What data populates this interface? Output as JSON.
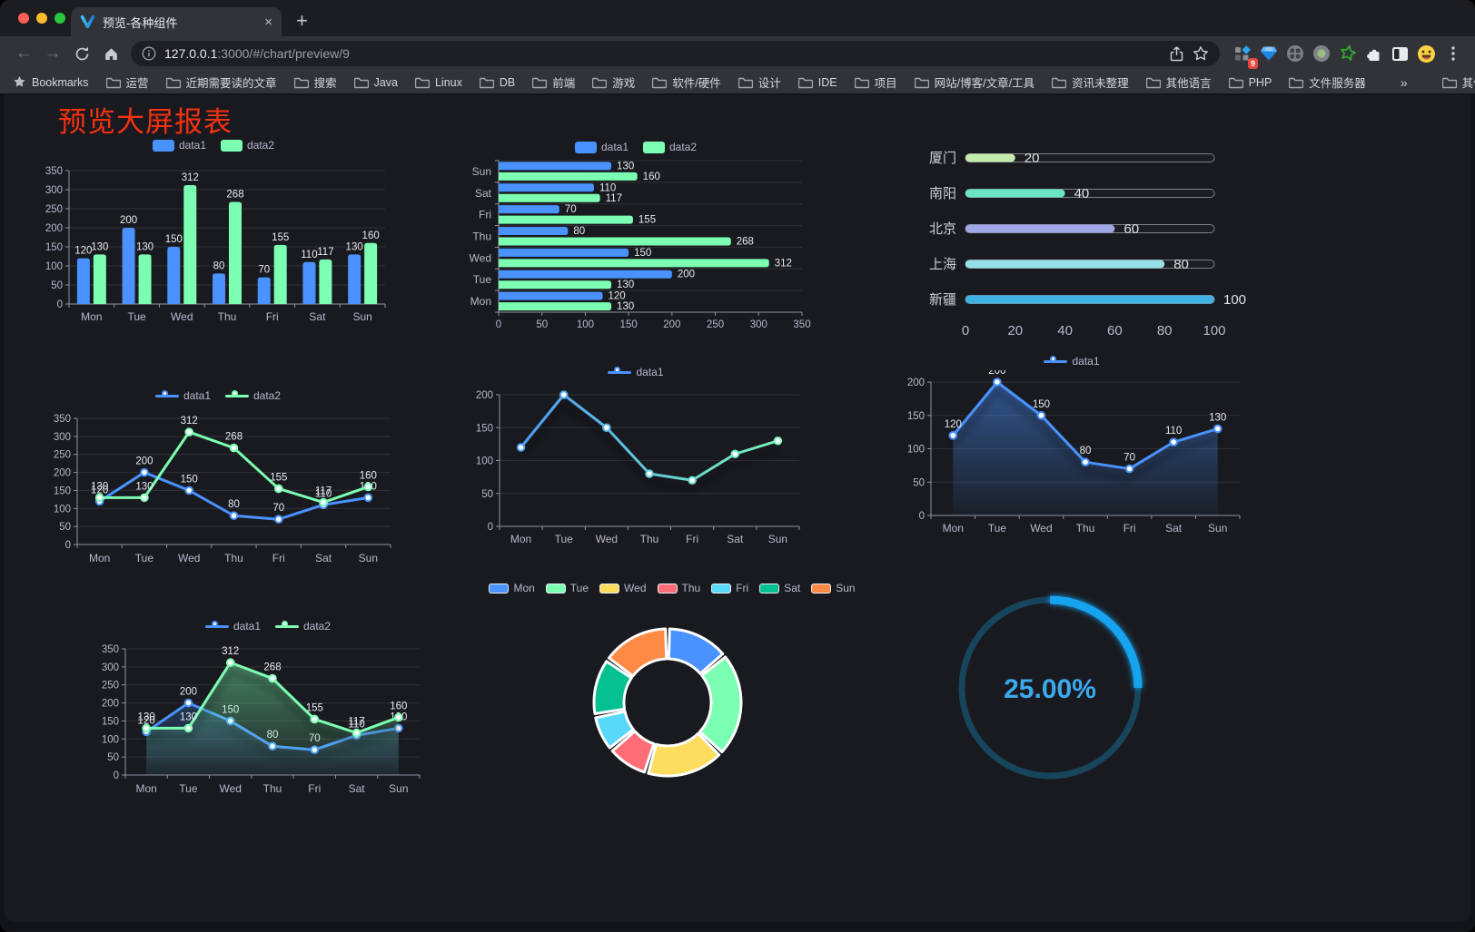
{
  "browser": {
    "tab_title": "预览-各种组件",
    "url_host": "127.0.0.1",
    "url_path": ":3000/#/chart/preview/9",
    "bookmarks_label": "Bookmarks",
    "bookmark_folders": [
      "运营",
      "近期需要读的文章",
      "搜索",
      "Java",
      "Linux",
      "DB",
      "前端",
      "游戏",
      "软件/硬件",
      "设计",
      "IDE",
      "项目",
      "网站/博客/文章/工具",
      "资讯未整理",
      "其他语言",
      "PHP",
      "文件服务器"
    ],
    "overflow": "»",
    "other_bookmarks": "其他书签",
    "extension_badge": "9"
  },
  "icons": {
    "close": "×",
    "new_tab": "+",
    "back": "←",
    "forward": "→"
  },
  "page": {
    "title": "预览大屏报表",
    "title_color": "#f5310f"
  },
  "colors": {
    "data1": "#4992ff",
    "data2": "#7cffb2",
    "axis_label": "#b9b8ce",
    "value_label": "#e9eaee"
  },
  "chart_data": [
    {
      "id": "bar-vertical",
      "type": "bar",
      "categories": [
        "Mon",
        "Tue",
        "Wed",
        "Thu",
        "Fri",
        "Sat",
        "Sun"
      ],
      "series": [
        {
          "name": "data1",
          "color": "#4992ff",
          "values": [
            120,
            200,
            150,
            80,
            70,
            110,
            130
          ]
        },
        {
          "name": "data2",
          "color": "#7cffb2",
          "values": [
            130,
            130,
            312,
            268,
            155,
            117,
            160
          ]
        }
      ],
      "ylim": [
        0,
        350
      ],
      "yticks": [
        0,
        50,
        100,
        150,
        200,
        250,
        300,
        350
      ],
      "value_labels": true
    },
    {
      "id": "bar-horizontal",
      "type": "hbar",
      "categories": [
        "Mon",
        "Tue",
        "Wed",
        "Thu",
        "Fri",
        "Sat",
        "Sun"
      ],
      "display_order_top_to_bottom": [
        "Sun",
        "Sat",
        "Fri",
        "Thu",
        "Wed",
        "Tue",
        "Mon"
      ],
      "series": [
        {
          "name": "data1",
          "color": "#4992ff",
          "values": [
            120,
            200,
            150,
            80,
            70,
            110,
            130
          ]
        },
        {
          "name": "data2",
          "color": "#7cffb2",
          "values": [
            130,
            130,
            312,
            268,
            155,
            117,
            160
          ]
        }
      ],
      "xlim": [
        0,
        350
      ],
      "xticks": [
        0,
        50,
        100,
        150,
        200,
        250,
        300,
        350
      ],
      "value_labels": true
    },
    {
      "id": "capsule-progress",
      "type": "capsule-bar",
      "rows": [
        {
          "label": "厦门",
          "value": 20,
          "color": "#c4ebad"
        },
        {
          "label": "南阳",
          "value": 40,
          "color": "#6be6c1"
        },
        {
          "label": "北京",
          "value": 60,
          "color": "#a0a7e6"
        },
        {
          "label": "上海",
          "value": 80,
          "color": "#96dee8"
        },
        {
          "label": "新疆",
          "value": 100,
          "color": "#3fb1e3"
        }
      ],
      "xlim": [
        0,
        100
      ],
      "xticks": [
        0,
        20,
        40,
        60,
        80,
        100
      ]
    },
    {
      "id": "line-two-series",
      "type": "line",
      "categories": [
        "Mon",
        "Tue",
        "Wed",
        "Thu",
        "Fri",
        "Sat",
        "Sun"
      ],
      "series": [
        {
          "name": "data1",
          "color": "#4992ff",
          "values": [
            120,
            200,
            150,
            80,
            70,
            110,
            130
          ]
        },
        {
          "name": "data2",
          "color": "#7cffb2",
          "values": [
            130,
            130,
            312,
            268,
            155,
            117,
            160
          ]
        }
      ],
      "ylim": [
        0,
        350
      ],
      "yticks": [
        0,
        50,
        100,
        150,
        200,
        250,
        300,
        350
      ],
      "value_labels": true
    },
    {
      "id": "line-gradient",
      "type": "line",
      "categories": [
        "Mon",
        "Tue",
        "Wed",
        "Thu",
        "Fri",
        "Sat",
        "Sun"
      ],
      "series": [
        {
          "name": "data1",
          "color": "#4992ff",
          "gradient": [
            "#4992ff",
            "#7cffb2"
          ],
          "values": [
            120,
            200,
            150,
            80,
            70,
            110,
            130
          ]
        }
      ],
      "ylim": [
        0,
        200
      ],
      "yticks": [
        0,
        50,
        100,
        150,
        200
      ],
      "value_labels": false,
      "shadow": true
    },
    {
      "id": "line-area",
      "type": "line",
      "categories": [
        "Mon",
        "Tue",
        "Wed",
        "Thu",
        "Fri",
        "Sat",
        "Sun"
      ],
      "series": [
        {
          "name": "data1",
          "color": "#4992ff",
          "area": true,
          "values": [
            120,
            200,
            150,
            80,
            70,
            110,
            130
          ]
        }
      ],
      "ylim": [
        0,
        200
      ],
      "yticks": [
        0,
        50,
        100,
        150,
        200
      ],
      "value_labels": true,
      "shadow": true
    },
    {
      "id": "area-two-series",
      "type": "line",
      "categories": [
        "Mon",
        "Tue",
        "Wed",
        "Thu",
        "Fri",
        "Sat",
        "Sun"
      ],
      "series": [
        {
          "name": "data1",
          "color": "#4992ff",
          "area": true,
          "values": [
            120,
            200,
            150,
            80,
            70,
            110,
            130
          ]
        },
        {
          "name": "data2",
          "color": "#7cffb2",
          "area": true,
          "values": [
            130,
            130,
            312,
            268,
            155,
            117,
            160
          ]
        }
      ],
      "ylim": [
        0,
        350
      ],
      "yticks": [
        0,
        50,
        100,
        150,
        200,
        250,
        300,
        350
      ],
      "value_labels": true,
      "shadow": true
    },
    {
      "id": "pie-week",
      "type": "pie",
      "donut": true,
      "items": [
        {
          "name": "Mon",
          "value": 120,
          "color": "#4992ff"
        },
        {
          "name": "Tue",
          "value": 200,
          "color": "#7cffb2"
        },
        {
          "name": "Wed",
          "value": 150,
          "color": "#fddd60"
        },
        {
          "name": "Thu",
          "value": 80,
          "color": "#ff6e76"
        },
        {
          "name": "Fri",
          "value": 70,
          "color": "#58d9f9"
        },
        {
          "name": "Sat",
          "value": 110,
          "color": "#05c091"
        },
        {
          "name": "Sun",
          "value": 130,
          "color": "#ff8a45"
        }
      ]
    },
    {
      "id": "gauge-percent",
      "type": "gauge",
      "label": "25.00%",
      "percent": 25,
      "track_color": "#17455c",
      "progress_color": "#18a3f0",
      "text_color": "#3aa9ee"
    }
  ]
}
